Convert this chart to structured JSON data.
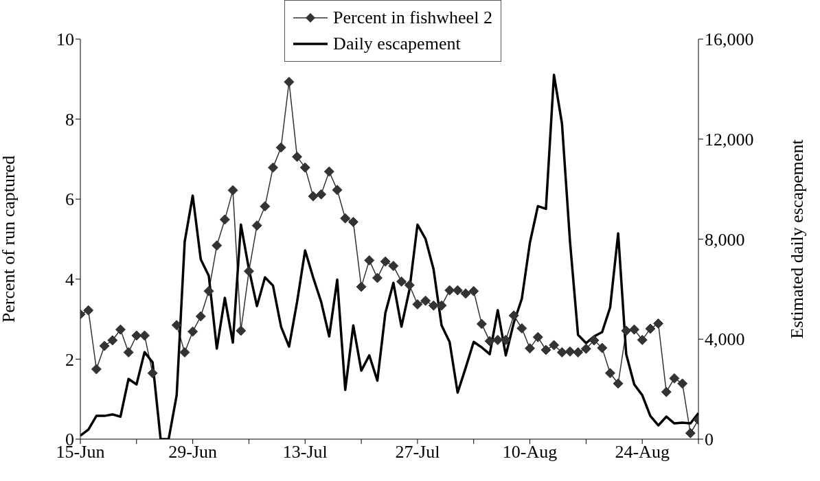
{
  "chart_data": {
    "type": "line",
    "ylabel": "Percent of run captured",
    "y2label": "Estimated daily escapement",
    "legend": "top",
    "x": [
      "--06-15",
      "--06-16",
      "--06-17",
      "--06-18",
      "--06-19",
      "--06-20",
      "--06-21",
      "--06-22",
      "--06-23",
      "--06-24",
      "--06-25",
      "--06-26",
      "--06-27",
      "--06-28",
      "--06-29",
      "--06-30",
      "--07-01",
      "--07-02",
      "--07-03",
      "--07-04",
      "--07-05",
      "--07-06",
      "--07-07",
      "--07-08",
      "--07-09",
      "--07-10",
      "--07-11",
      "--07-12",
      "--07-13",
      "--07-14",
      "--07-15",
      "--07-16",
      "--07-17",
      "--07-18",
      "--07-19",
      "--07-20",
      "--07-21",
      "--07-22",
      "--07-23",
      "--07-24",
      "--07-25",
      "--07-26",
      "--07-27",
      "--07-28",
      "--07-29",
      "--07-30",
      "--07-31",
      "--08-01",
      "--08-02",
      "--08-03",
      "--08-04",
      "--08-05",
      "--08-06",
      "--08-07",
      "--08-08",
      "--08-09",
      "--08-10",
      "--08-11",
      "--08-12",
      "--08-13",
      "--08-14",
      "--08-15",
      "--08-16",
      "--08-17",
      "--08-18",
      "--08-19",
      "--08-20",
      "--08-21",
      "--08-22",
      "--08-23",
      "--08-24",
      "--08-25",
      "--08-26",
      "--08-27",
      "--08-28",
      "--08-29",
      "--08-30",
      "--08-31"
    ],
    "xlim": [
      "--06-15",
      "--08-31"
    ],
    "xticks": [
      {
        "value": "--06-15",
        "label": "15-Jun"
      },
      {
        "value": "--06-22",
        "label": null
      },
      {
        "value": "--06-29",
        "label": "29-Jun"
      },
      {
        "value": "--07-06",
        "label": null
      },
      {
        "value": "--07-13",
        "label": "13-Jul"
      },
      {
        "value": "--07-20",
        "label": null
      },
      {
        "value": "--07-27",
        "label": "27-Jul"
      },
      {
        "value": "--08-03",
        "label": null
      },
      {
        "value": "--08-10",
        "label": "10-Aug"
      },
      {
        "value": "--08-17",
        "label": null
      },
      {
        "value": "--08-24",
        "label": "24-Aug"
      },
      {
        "value": "--08-31",
        "label": null
      }
    ],
    "ylim": [
      0,
      10
    ],
    "yticks": [
      0,
      2,
      4,
      6,
      8,
      10
    ],
    "y2lim": [
      0,
      16000
    ],
    "y2ticks": [
      0,
      {
        "value": 4000,
        "label": "4,000"
      },
      {
        "value": 8000,
        "label": "8,000"
      },
      {
        "value": 12000,
        "label": "12,000"
      },
      {
        "value": 16000,
        "label": "16,000"
      }
    ],
    "series": [
      {
        "name": "Percent in fishwheel 2",
        "color": "#333333",
        "marker": "diamond",
        "values": [
          3.12,
          3.22,
          1.75,
          2.33,
          2.47,
          2.74,
          2.17,
          2.59,
          2.59,
          1.65,
          null,
          null,
          2.85,
          2.17,
          2.69,
          3.07,
          3.7,
          4.84,
          5.49,
          6.22,
          2.71,
          4.2,
          5.34,
          5.82,
          6.79,
          7.29,
          8.93,
          7.06,
          6.79,
          6.07,
          6.12,
          6.69,
          6.23,
          5.52,
          5.43,
          3.81,
          4.47,
          4.03,
          4.44,
          4.33,
          3.94,
          3.85,
          3.37,
          3.46,
          3.34,
          3.34,
          3.72,
          3.72,
          3.64,
          3.7,
          2.88,
          2.45,
          2.48,
          2.48,
          3.09,
          2.77,
          2.27,
          2.55,
          2.23,
          2.35,
          2.17,
          2.19,
          2.17,
          2.26,
          2.47,
          2.28,
          1.65,
          1.39,
          2.71,
          2.74,
          2.48,
          2.76,
          2.89,
          1.18,
          1.52,
          1.39,
          0.15,
          0.48
        ]
      },
      {
        "name": "Daily escapement",
        "color": "#000000",
        "marker": "none",
        "axis": "y2",
        "values": [
          140,
          380,
          930,
          930,
          990,
          900,
          2410,
          2190,
          3480,
          3070,
          0,
          0,
          1760,
          7900,
          9740,
          7190,
          6530,
          3620,
          5650,
          3860,
          8580,
          6800,
          5320,
          6470,
          6140,
          4500,
          3700,
          5490,
          7550,
          6470,
          5490,
          4110,
          6380,
          1970,
          4550,
          2740,
          3350,
          2340,
          5050,
          6250,
          4500,
          5980,
          8580,
          8010,
          6800,
          4550,
          3890,
          1860,
          2850,
          3890,
          3670,
          3400,
          5160,
          3350,
          4660,
          5620,
          7850,
          9320,
          9210,
          14570,
          12620,
          7900,
          4170,
          3840,
          4110,
          4280,
          5270,
          8230,
          3400,
          2190,
          1760,
          930,
          550,
          900,
          630,
          660,
          630,
          1040
        ]
      }
    ]
  }
}
